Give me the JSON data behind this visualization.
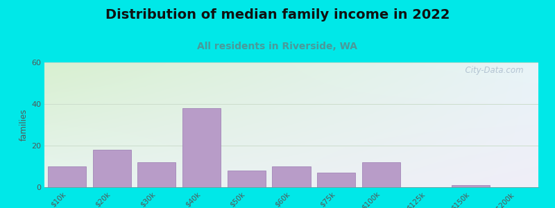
{
  "title": "Distribution of median family income in 2022",
  "subtitle": "All residents in Riverside, WA",
  "categories": [
    "$10k",
    "$20k",
    "$30k",
    "$40k",
    "$50k",
    "$60k",
    "$75k",
    "$100k",
    "$125k",
    "$150k",
    ">$200k"
  ],
  "values": [
    10,
    18,
    12,
    38,
    8,
    10,
    7,
    12,
    0,
    1,
    0
  ],
  "bar_color": "#b89cc8",
  "bar_edge_color": "#9878b0",
  "ylabel": "families",
  "ylim": [
    0,
    60
  ],
  "yticks": [
    0,
    20,
    40,
    60
  ],
  "bg_outer": "#00e8e8",
  "bg_inner_topleft": "#d8f0d0",
  "bg_inner_topright": "#e8f4f8",
  "bg_inner_bottomleft": "#e8f4f0",
  "bg_inner_bottomright": "#f0eef8",
  "title_fontsize": 14,
  "subtitle_fontsize": 10,
  "subtitle_color": "#4a9a9a",
  "title_color": "#111111",
  "watermark": "City-Data.com",
  "watermark_color": "#aabbcc",
  "grid_color": "#ccddcc",
  "tick_color": "#555555",
  "ylabel_color": "#555555"
}
